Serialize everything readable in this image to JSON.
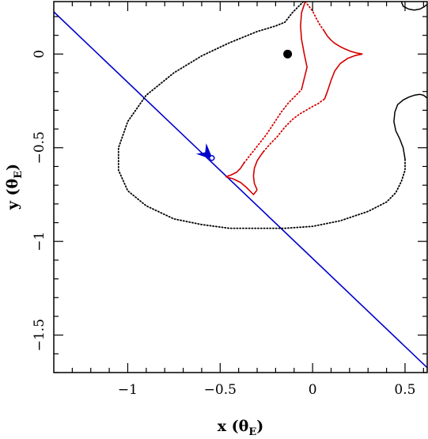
{
  "chart_data": {
    "type": "line",
    "title": "",
    "xlabel": "x",
    "ylabel": "y",
    "unit_symbol": "θ",
    "unit_subscript": "E",
    "xlim": [
      -1.4,
      0.62
    ],
    "ylim": [
      -1.7,
      0.28
    ],
    "x_ticks": [
      -1,
      -0.5,
      0,
      0.5
    ],
    "x_tick_labels": [
      "−1",
      "−0.5",
      "0",
      "0.5"
    ],
    "y_ticks": [
      0,
      -0.5,
      -1,
      -1.5
    ],
    "y_tick_labels": [
      "0",
      "−0.5",
      "−1",
      "−1.5"
    ],
    "minor_step": 0.1,
    "grid": false,
    "colors": {
      "trajectory": "#0000cc",
      "caustic": "#d40000",
      "critical_curve": "#000000",
      "lens": "#000000"
    },
    "series": [
      {
        "kind": "source-trajectory",
        "x": [
          -1.4,
          0.62
        ],
        "y": [
          0.225,
          -1.674
        ]
      },
      {
        "kind": "caustic-solid",
        "x": [
          0.27,
          0.24,
          0.21,
          0.18,
          0.15,
          0.12,
          0.1,
          0.08,
          0.06
        ],
        "y": [
          0.0,
          0.005,
          0.013,
          0.025,
          0.039,
          0.057,
          0.074,
          0.096,
          0.127
        ]
      },
      {
        "kind": "caustic-solid",
        "x": [
          0.27,
          0.23,
          0.19,
          0.15,
          0.12,
          0.1,
          0.08,
          0.065
        ],
        "y": [
          0.0,
          -0.008,
          -0.023,
          -0.05,
          -0.09,
          -0.14,
          -0.2,
          -0.24
        ]
      },
      {
        "kind": "caustic-solid",
        "x": [
          -0.04,
          -0.06,
          -0.065,
          -0.06,
          -0.045,
          -0.03,
          -0.045,
          -0.06
        ],
        "y": [
          0.28,
          0.22,
          0.15,
          0.08,
          0.0,
          -0.07,
          -0.13,
          -0.19
        ]
      },
      {
        "kind": "caustic-solid",
        "x": [
          -0.47,
          -0.43,
          -0.39,
          -0.36,
          -0.34,
          -0.32,
          -0.3
        ],
        "y": [
          -0.655,
          -0.666,
          -0.685,
          -0.71,
          -0.73,
          -0.75,
          -0.725
        ]
      },
      {
        "kind": "caustic-solid",
        "x": [
          -0.3,
          -0.315,
          -0.32,
          -0.315,
          -0.3,
          -0.28,
          -0.265
        ],
        "y": [
          -0.725,
          -0.69,
          -0.65,
          -0.61,
          -0.57,
          -0.54,
          -0.52
        ]
      },
      {
        "kind": "caustic-solid",
        "x": [
          -0.47,
          -0.44,
          -0.41,
          -0.39,
          -0.37
        ],
        "y": [
          -0.655,
          -0.645,
          -0.63,
          -0.61,
          -0.58
        ]
      },
      {
        "kind": "caustic-dotted",
        "x": [
          -0.37,
          -0.33,
          -0.29,
          -0.25,
          -0.21,
          -0.17,
          -0.13,
          -0.1,
          -0.075,
          -0.06
        ],
        "y": [
          -0.58,
          -0.53,
          -0.48,
          -0.43,
          -0.37,
          -0.31,
          -0.26,
          -0.23,
          -0.205,
          -0.19
        ]
      },
      {
        "kind": "caustic-dotted",
        "x": [
          -0.265,
          -0.23,
          -0.19,
          -0.15,
          -0.11,
          -0.07,
          -0.035,
          0.0,
          0.03,
          0.05,
          0.065
        ],
        "y": [
          -0.52,
          -0.48,
          -0.44,
          -0.39,
          -0.35,
          -0.32,
          -0.3,
          -0.28,
          -0.265,
          -0.25,
          -0.24
        ]
      },
      {
        "kind": "caustic-dotted",
        "x": [
          -0.04,
          0.0,
          0.02,
          0.04,
          0.06
        ],
        "y": [
          0.28,
          0.23,
          0.19,
          0.155,
          0.127
        ]
      },
      {
        "kind": "critical-curve-dotted",
        "x": [
          -0.05,
          -0.11,
          -0.15,
          -0.2,
          -0.3,
          -0.45,
          -0.6,
          -0.75,
          -0.9,
          -1.0,
          -1.05,
          -1.05,
          -1.0,
          -0.9,
          -0.75,
          -0.6,
          -0.45,
          -0.3,
          -0.15,
          0.0,
          0.15,
          0.3,
          0.4,
          0.45,
          0.48,
          0.5,
          0.5
        ],
        "y": [
          0.28,
          0.22,
          0.17,
          0.15,
          0.12,
          0.06,
          -0.01,
          -0.1,
          -0.22,
          -0.36,
          -0.5,
          -0.62,
          -0.73,
          -0.81,
          -0.88,
          -0.91,
          -0.93,
          -0.93,
          -0.93,
          -0.92,
          -0.89,
          -0.84,
          -0.79,
          -0.74,
          -0.68,
          -0.62,
          -0.56
        ]
      },
      {
        "kind": "critical-curve-solid",
        "x": [
          0.5,
          0.49,
          0.47,
          0.45,
          0.44,
          0.445,
          0.46,
          0.49,
          0.52,
          0.55,
          0.58,
          0.6,
          0.62
        ],
        "y": [
          -0.56,
          -0.5,
          -0.45,
          -0.41,
          -0.36,
          -0.31,
          -0.27,
          -0.245,
          -0.23,
          -0.22,
          -0.215,
          -0.22,
          -0.235
        ]
      },
      {
        "kind": "critical-curve-solid",
        "x": [
          0.48,
          0.49,
          0.52,
          0.55,
          0.58,
          0.6,
          0.62
        ],
        "y": [
          0.28,
          0.255,
          0.24,
          0.235,
          0.24,
          0.25,
          0.265
        ]
      }
    ],
    "lens_point": {
      "x": -0.135,
      "y": 0.0
    },
    "source_marker": {
      "x": -0.545,
      "y": -0.555
    },
    "direction_arrow": {
      "x": -0.57,
      "y": -0.535
    }
  }
}
